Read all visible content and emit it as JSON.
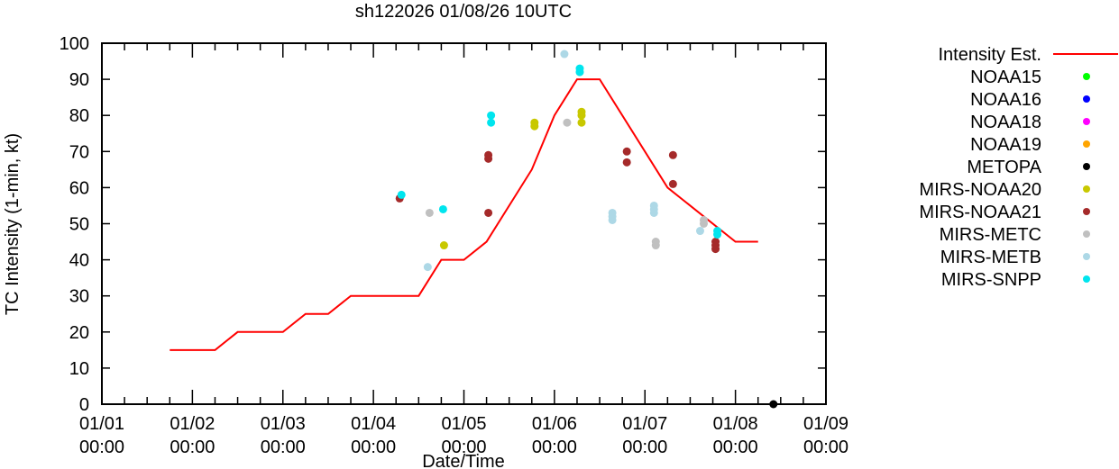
{
  "chart_data": {
    "type": "scatter",
    "title": "sh122026 01/08/26 10UTC",
    "xlabel": "Date/Time",
    "ylabel": "TC Intensity (1-min, kt)",
    "xlim_days": [
      0,
      8
    ],
    "ylim": [
      0,
      100
    ],
    "x_unit": "days since 01/01 00:00",
    "x_ticks": [
      {
        "value": 0,
        "line1": "01/01",
        "line2": "00:00"
      },
      {
        "value": 1,
        "line1": "01/02",
        "line2": "00:00"
      },
      {
        "value": 2,
        "line1": "01/03",
        "line2": "00:00"
      },
      {
        "value": 3,
        "line1": "01/04",
        "line2": "00:00"
      },
      {
        "value": 4,
        "line1": "01/05",
        "line2": "00:00"
      },
      {
        "value": 5,
        "line1": "01/06",
        "line2": "00:00"
      },
      {
        "value": 6,
        "line1": "01/07",
        "line2": "00:00"
      },
      {
        "value": 7,
        "line1": "01/08",
        "line2": "00:00"
      },
      {
        "value": 8,
        "line1": "01/09",
        "line2": "00:00"
      }
    ],
    "y_ticks": [
      "0",
      "10",
      "20",
      "30",
      "40",
      "50",
      "60",
      "70",
      "80",
      "90",
      "100"
    ],
    "legend_position": "right",
    "line": {
      "name": "Intensity Est.",
      "color": "#ff0000",
      "x": [
        0.75,
        1.25,
        1.5,
        2.0,
        2.25,
        2.5,
        2.75,
        3.5,
        3.75,
        4.0,
        4.25,
        4.75,
        5.0,
        5.25,
        5.5,
        6.25,
        7.0,
        7.25
      ],
      "y": [
        15,
        15,
        20,
        20,
        25,
        25,
        30,
        30,
        40,
        40,
        45,
        65,
        80,
        90,
        90,
        60,
        45,
        45
      ]
    },
    "series": [
      {
        "name": "NOAA15",
        "color": "#00ff00",
        "points": []
      },
      {
        "name": "NOAA16",
        "color": "#0000ff",
        "points": []
      },
      {
        "name": "NOAA18",
        "color": "#ff00ff",
        "points": []
      },
      {
        "name": "NOAA19",
        "color": "#ffa500",
        "points": []
      },
      {
        "name": "METOPA",
        "color": "#000000",
        "points": [
          [
            7.42,
            0
          ]
        ]
      },
      {
        "name": "MIRS-NOAA20",
        "color": "#c8c800",
        "points": [
          [
            3.78,
            44
          ],
          [
            4.78,
            78
          ],
          [
            4.78,
            77
          ],
          [
            5.3,
            81
          ],
          [
            5.3,
            80
          ],
          [
            5.3,
            78
          ]
        ]
      },
      {
        "name": "MIRS-NOAA21",
        "color": "#a52a2a",
        "points": [
          [
            3.29,
            57
          ],
          [
            4.27,
            69
          ],
          [
            4.27,
            68
          ],
          [
            4.27,
            53
          ],
          [
            5.8,
            70
          ],
          [
            5.8,
            67
          ],
          [
            6.31,
            69
          ],
          [
            6.31,
            61
          ],
          [
            6.78,
            45
          ],
          [
            6.78,
            44
          ],
          [
            6.78,
            43
          ]
        ]
      },
      {
        "name": "MIRS-METC",
        "color": "#c0c0c0",
        "points": [
          [
            3.62,
            53
          ],
          [
            5.14,
            78
          ],
          [
            6.12,
            45
          ],
          [
            6.12,
            44
          ],
          [
            6.65,
            51
          ],
          [
            6.65,
            50
          ]
        ]
      },
      {
        "name": "MIRS-METB",
        "color": "#add8e6",
        "points": [
          [
            3.6,
            38
          ],
          [
            5.11,
            97
          ],
          [
            5.64,
            53
          ],
          [
            5.64,
            52
          ],
          [
            5.64,
            51
          ],
          [
            6.1,
            55
          ],
          [
            6.1,
            54
          ],
          [
            6.1,
            53
          ],
          [
            6.61,
            48
          ]
        ]
      },
      {
        "name": "MIRS-SNPP",
        "color": "#00e5ee",
        "points": [
          [
            3.31,
            58
          ],
          [
            3.77,
            54
          ],
          [
            4.3,
            80
          ],
          [
            4.3,
            78
          ],
          [
            5.28,
            93
          ],
          [
            5.28,
            92
          ],
          [
            6.8,
            48
          ],
          [
            6.8,
            47
          ]
        ]
      }
    ]
  }
}
